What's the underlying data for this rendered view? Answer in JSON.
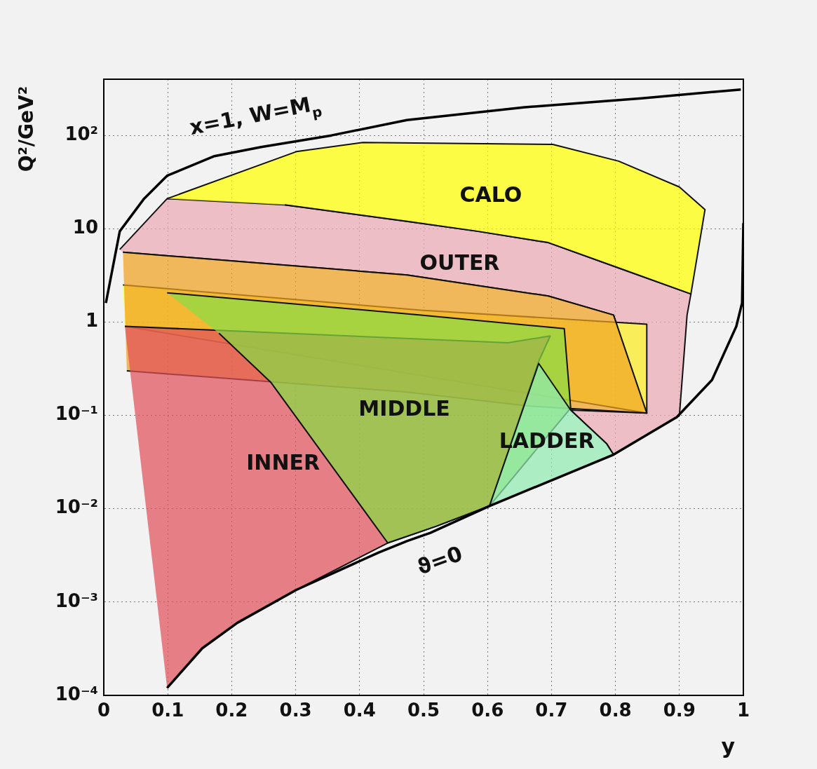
{
  "chart_data": {
    "type": "area",
    "xlabel": "y",
    "ylabel": "Q²/GeV²",
    "log": "y",
    "grid": true,
    "legend": false,
    "xlim": [
      0,
      1
    ],
    "ylim": [
      0.0001,
      400
    ],
    "xticks": [
      0,
      0.1,
      0.2,
      0.3,
      0.4,
      0.5,
      0.6,
      0.7,
      0.8,
      0.9,
      1
    ],
    "yticks": [
      {
        "value": 0.0001,
        "label": "10⁻⁴"
      },
      {
        "value": 0.001,
        "label": "10⁻³"
      },
      {
        "value": 0.01,
        "label": "10⁻²"
      },
      {
        "value": 0.1,
        "label": "10⁻¹"
      },
      1,
      10,
      {
        "value": 100,
        "label": "10²"
      }
    ],
    "series": [
      {
        "name": "OUTER",
        "color": "#eba9b5",
        "x": [
          0.025,
          0.099,
          0.283,
          0.474,
          0.584,
          0.695,
          0.805,
          0.918,
          0.912,
          0.9,
          0.797,
          0.786,
          0.73,
          0.849,
          0.797,
          0.695,
          0.474,
          0.03
        ],
        "values": [
          6,
          21,
          18,
          12,
          9.4,
          7.1,
          3.8,
          2.0,
          1.19,
          0.1,
          0.038,
          0.05,
          0.114,
          0.106,
          1.19,
          1.9,
          3.2,
          5.6
        ]
      },
      {
        "name": "CALO",
        "color": "#ffff00",
        "x": [
          0.099,
          0.301,
          0.405,
          0.702,
          0.805,
          0.9,
          0.94,
          0.918,
          0.805,
          0.695,
          0.584,
          0.474,
          0.283
        ],
        "values": [
          21,
          67,
          84,
          80,
          53,
          28,
          16,
          2.0,
          3.8,
          7.1,
          9.4,
          12,
          18
        ]
      },
      {
        "color": "#ffff30",
        "x": [
          0.03,
          0.496,
          0.849,
          0.849,
          0.033
        ],
        "values": [
          2.5,
          1.34,
          0.95,
          0.106,
          0.9
        ]
      },
      {
        "color": "#f0a020",
        "x": [
          0.03,
          0.474,
          0.695,
          0.797,
          0.849,
          0.665,
          0.474,
          0.036
        ],
        "values": [
          5.6,
          3.2,
          1.9,
          1.19,
          0.106,
          0.126,
          0.178,
          0.3
        ]
      },
      {
        "name": "INNER",
        "color": "#e0505a",
        "x": [
          0.033,
          0.632,
          0.698,
          0.68,
          0.603,
          0.52,
          0.444,
          0.301,
          0.209,
          0.154,
          0.099
        ],
        "values": [
          0.9,
          0.6,
          0.71,
          0.38,
          0.0107,
          0.0065,
          0.0043,
          0.00135,
          0.0006,
          0.00032,
          0.00012
        ]
      },
      {
        "name": "MIDDLE",
        "color": "#88dd44",
        "x": [
          0.099,
          0.496,
          0.72,
          0.73,
          0.603,
          0.52,
          0.444,
          0.261,
          0.18
        ],
        "values": [
          2.06,
          1.19,
          0.85,
          0.12,
          0.0107,
          0.0065,
          0.0043,
          0.227,
          0.76
        ]
      },
      {
        "name": "LADDER",
        "color": "#90eab0",
        "x": [
          0.603,
          0.68,
          0.73,
          0.786,
          0.797,
          0.7
        ],
        "values": [
          0.0107,
          0.36,
          0.114,
          0.05,
          0.038,
          0.02
        ]
      },
      {
        "type": "line",
        "color": "#000000",
        "x": [
          0.0033,
          0.025,
          0.063,
          0.099,
          0.173,
          0.246,
          0.356,
          0.474,
          0.658,
          0.841,
          0.996
        ],
        "values": [
          1.6,
          9.4,
          21,
          37,
          60,
          75,
          100,
          146,
          200,
          250,
          310
        ]
      },
      {
        "type": "line",
        "color": "#000000",
        "x": [
          0.099,
          0.154,
          0.209,
          0.301,
          0.43,
          0.474,
          0.51,
          0.603,
          0.797,
          0.896,
          0.951,
          0.989,
          0.998,
          1.0
        ],
        "values": [
          0.00012,
          0.00032,
          0.0006,
          0.00135,
          0.0034,
          0.0045,
          0.0055,
          0.0107,
          0.038,
          0.096,
          0.24,
          0.9,
          1.6,
          11.5
        ]
      }
    ],
    "annotations": [
      {
        "text": "x=1, W=M$_{p}$",
        "x": 0.246,
        "y": 75
      },
      {
        "text": "ϑ=0",
        "x": 0.51,
        "y": 0.0055
      }
    ]
  }
}
